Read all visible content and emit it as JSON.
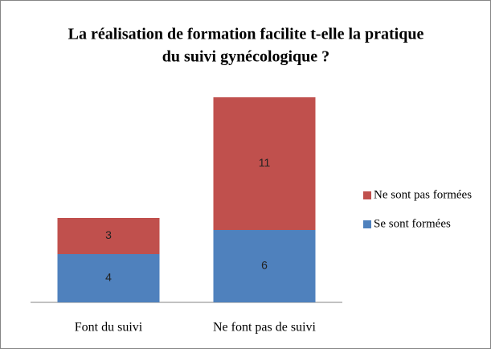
{
  "chart_data": {
    "type": "stacked_bar",
    "title": [
      "La réalisation de formation facilite t-elle la pratique",
      "du suivi gynécologique ?"
    ],
    "categories": [
      "Font du suivi",
      "Ne font pas de suivi"
    ],
    "series": [
      {
        "name": "Se sont formées",
        "color": "#4f81bd",
        "values": [
          4,
          6
        ]
      },
      {
        "name": "Ne sont pas formées",
        "color": "#c0504d",
        "values": [
          3,
          11
        ]
      }
    ],
    "legend": "right"
  }
}
